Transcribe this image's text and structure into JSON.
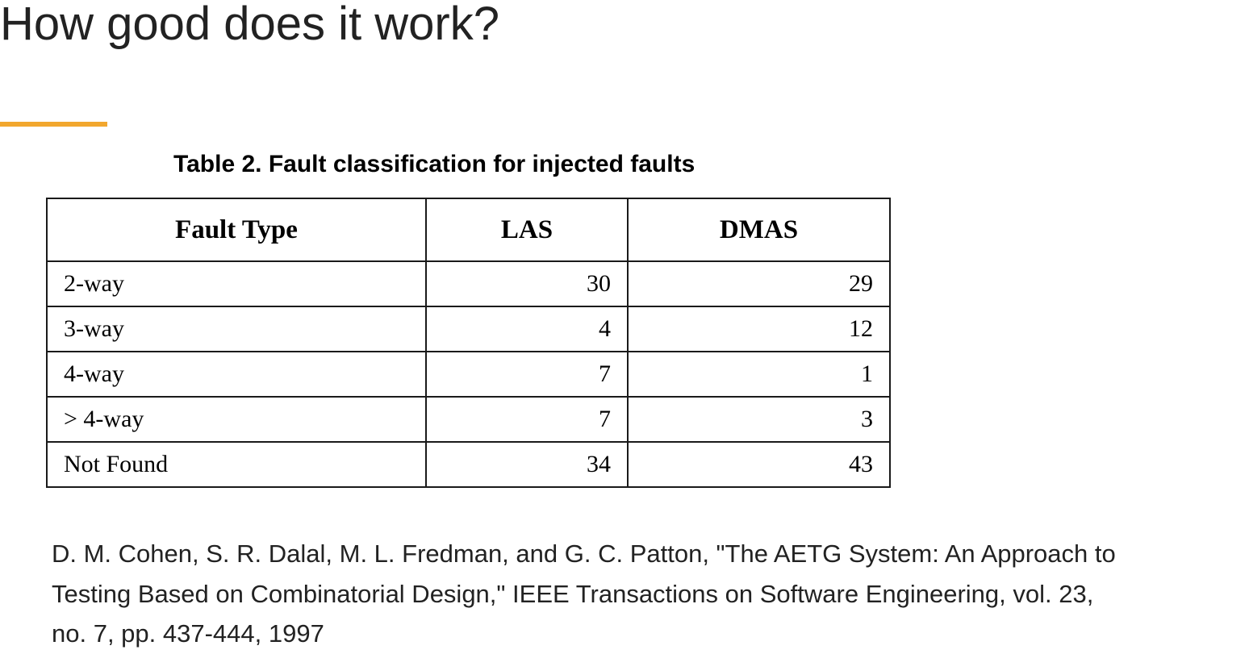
{
  "slide": {
    "title": "How good does it work?",
    "accent_color": "#f2a72e"
  },
  "table": {
    "caption": "Table 2. Fault classification for injected faults",
    "headers": [
      "Fault Type",
      "LAS",
      "DMAS"
    ],
    "rows": [
      {
        "fault_type": "2-way",
        "las": "30",
        "dmas": "29"
      },
      {
        "fault_type": "3-way",
        "las": "4",
        "dmas": "12"
      },
      {
        "fault_type": "4-way",
        "las": "7",
        "dmas": "1"
      },
      {
        "fault_type": "> 4-way",
        "las": "7",
        "dmas": "3"
      },
      {
        "fault_type": "Not Found",
        "las": "34",
        "dmas": "43"
      }
    ]
  },
  "citation": {
    "line1": "D. M. Cohen, S. R. Dalal, M. L. Fredman, and G. C. Patton, \"The AETG System: An Approach to",
    "line2": "Testing Based on Combinatorial Design,\" IEEE Transactions on Software Engineering, vol. 23,",
    "line3": "no. 7, pp. 437-444, 1997"
  }
}
